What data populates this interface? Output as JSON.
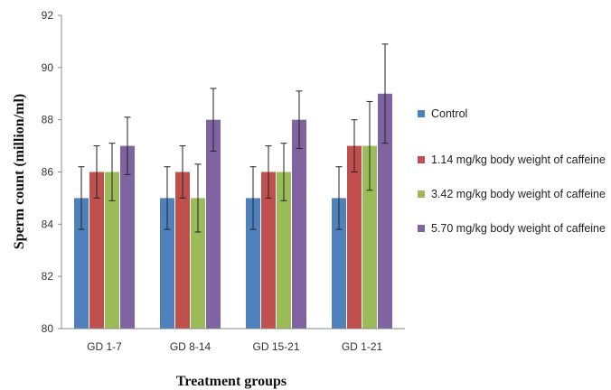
{
  "chart_data": {
    "type": "bar",
    "title": "",
    "xlabel": "Treatment groups",
    "ylabel": "Sperm count (million/ml)",
    "ylim": [
      80,
      92
    ],
    "yticks": [
      80,
      82,
      84,
      86,
      88,
      90,
      92
    ],
    "grid": false,
    "legend_position": "right",
    "categories": [
      "GD 1-7",
      "GD 8-14",
      "GD 15-21",
      "GD 1-21"
    ],
    "series": [
      {
        "name": "Control",
        "color": "#4f81bd",
        "values": [
          85,
          85,
          85,
          85
        ],
        "errors": [
          1.2,
          1.2,
          1.2,
          1.2
        ]
      },
      {
        "name": "1.14 mg/kg body weight of caffeine",
        "color": "#c0504d",
        "values": [
          86,
          86,
          86,
          87
        ],
        "errors": [
          1.0,
          1.0,
          1.0,
          1.0
        ]
      },
      {
        "name": "3.42 mg/kg body weight of caffeine",
        "color": "#9bbb59",
        "values": [
          86,
          85,
          86,
          87
        ],
        "errors": [
          1.1,
          1.3,
          1.1,
          1.7
        ]
      },
      {
        "name": "5.70 mg/kg body weight of caffeine",
        "color": "#8064a2",
        "values": [
          87,
          88,
          88,
          89
        ],
        "errors": [
          1.1,
          1.2,
          1.1,
          1.9
        ]
      }
    ]
  }
}
